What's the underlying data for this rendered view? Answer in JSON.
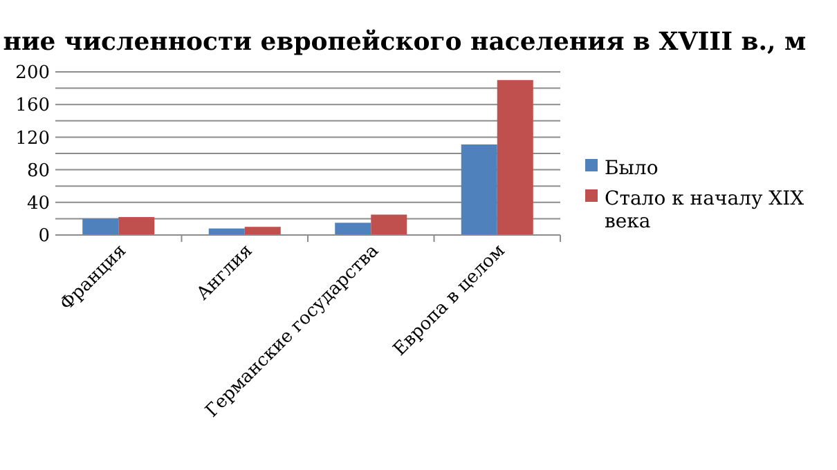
{
  "chart_data": {
    "type": "bar",
    "title": "ние численности европейского населения в XVIII в., м",
    "categories": [
      "Франция",
      "Англия",
      "Германские государства",
      "Европа в целом"
    ],
    "series": [
      {
        "name": "Было",
        "color": "#4f81bd",
        "values": [
          20,
          8,
          15,
          111
        ]
      },
      {
        "name": "Стало к началу XIX века",
        "color": "#c0504d",
        "values": [
          22,
          10,
          25,
          190
        ]
      }
    ],
    "ylim": [
      0,
      200
    ],
    "yticks": [
      0,
      {
        "value": 20,
        "label": null
      },
      40,
      {
        "value": 60,
        "label": null
      },
      80,
      {
        "value": 100,
        "label": null
      },
      120,
      {
        "value": 140,
        "label": null
      },
      160,
      {
        "value": 180,
        "label": null
      },
      200
    ],
    "grid": "y",
    "legend": "right"
  }
}
